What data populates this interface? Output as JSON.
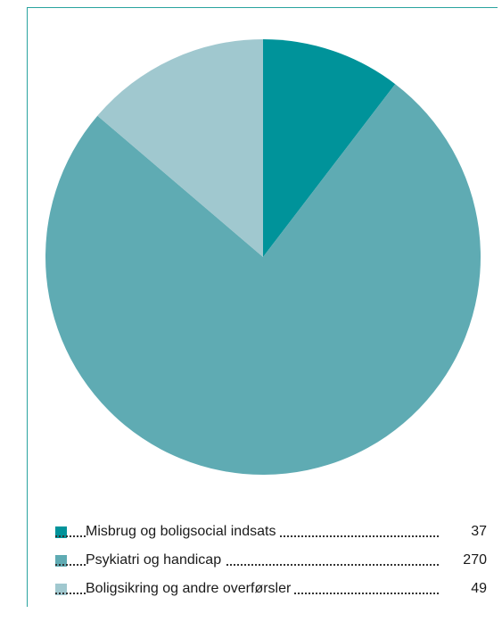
{
  "chart_data": {
    "type": "pie",
    "title": "",
    "start_angle_deg": 0,
    "direction": "clockwise",
    "slices": [
      {
        "label": "Misbrug og boligsocial indsats",
        "value": 37,
        "color": "#00939a"
      },
      {
        "label": "Psykiatri og handicap",
        "value": 270,
        "color": "#5fabb3"
      },
      {
        "label": "Boligsikring og andre overførsler",
        "value": 49,
        "color": "#a0c8cf"
      }
    ],
    "legend_position": "bottom"
  },
  "colors": {
    "frame": "#2aa39f",
    "text": "#1a1a1a"
  }
}
